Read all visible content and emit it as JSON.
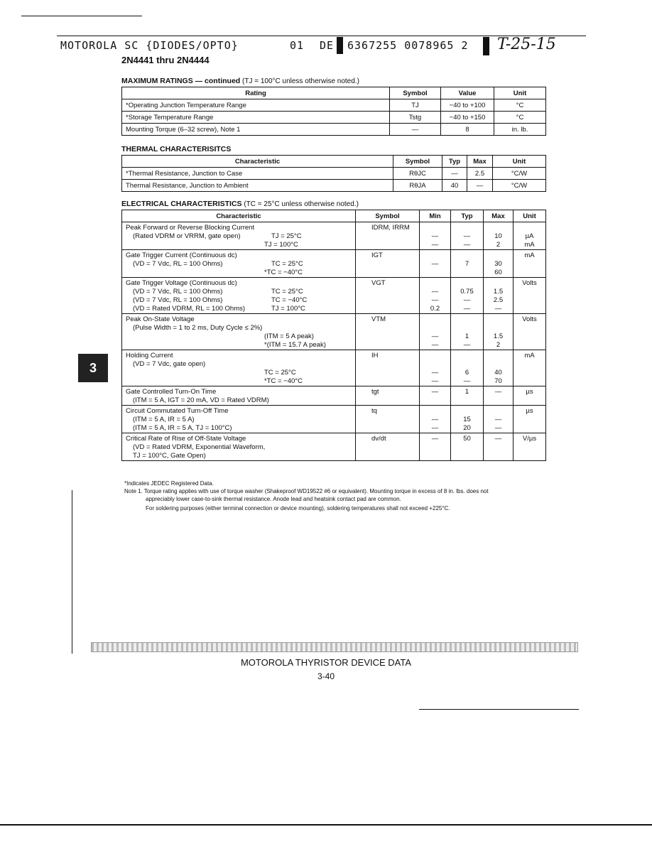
{
  "header": {
    "left": "MOTOROLA SC {DIODES/OPTO}",
    "code1": "01",
    "code2": "DE",
    "code3": "6367255 0078965 2",
    "handwritten": "T-25-15"
  },
  "title": "2N4441 thru 2N4444",
  "max_ratings": {
    "heading": "MAXIMUM RATINGS — continued",
    "heading_note": "(TJ = 100°C unless otherwise noted.)",
    "columns": [
      "Rating",
      "Symbol",
      "Value",
      "Unit"
    ],
    "rows": [
      [
        "*Operating Junction Temperature Range",
        "TJ",
        "−40 to +100",
        "°C"
      ],
      [
        "*Storage Temperature Range",
        "Tstg",
        "−40 to +150",
        "°C"
      ],
      [
        "Mounting Torque (6–32 screw), Note 1",
        "—",
        "8",
        "in. lb."
      ]
    ]
  },
  "thermal": {
    "heading": "THERMAL CHARACTERISITCS",
    "columns": [
      "Characteristic",
      "Symbol",
      "Typ",
      "Max",
      "Unit"
    ],
    "rows": [
      [
        "*Thermal Resistance, Junction to Case",
        "RθJC",
        "—",
        "2.5",
        "°C/W"
      ],
      [
        "Thermal Resistance, Junction to Ambient",
        "RθJA",
        "40",
        "—",
        "°C/W"
      ]
    ]
  },
  "electrical": {
    "heading": "ELECTRICAL CHARACTERISTICS",
    "heading_note": "(TC = 25°C unless otherwise noted.)",
    "columns": [
      "Characteristic",
      "Symbol",
      "Min",
      "Typ",
      "Max",
      "Unit"
    ],
    "rows": [
      {
        "symbol": "IDRM, IRRM",
        "lines": [
          {
            "c": "Peak Forward or Reverse Blocking Current"
          },
          {
            "c": "(Rated VDRM or VRRM, gate open)",
            "cond": "TJ = 25°C",
            "min": "—",
            "typ": "—",
            "max": "10",
            "unit": "µA"
          },
          {
            "c": "",
            "cond": "TJ = 100°C",
            "min": "—",
            "typ": "—",
            "max": "2",
            "unit": "mA"
          }
        ]
      },
      {
        "symbol": "IGT",
        "lines": [
          {
            "c": "Gate Trigger Current (Continuous dc)",
            "unit": "mA"
          },
          {
            "c": "(VD = 7 Vdc, RL = 100 Ohms)",
            "cond": "TC = 25°C",
            "min": "—",
            "typ": "7",
            "max": "30"
          },
          {
            "c": "",
            "cond": "*TC = −40°C",
            "max": "60"
          }
        ]
      },
      {
        "symbol": "VGT",
        "lines": [
          {
            "c": "Gate Trigger Voltage (Continuous dc)",
            "unit": "Volts"
          },
          {
            "c": "(VD = 7 Vdc, RL = 100 Ohms)",
            "cond": "TC = 25°C",
            "min": "—",
            "typ": "0.75",
            "max": "1.5"
          },
          {
            "c": "(VD = 7 Vdc, RL = 100 Ohms)",
            "cond": "TC = −40°C",
            "min": "—",
            "typ": "—",
            "max": "2.5"
          },
          {
            "c": "(VD = Rated VDRM, RL = 100 Ohms)",
            "cond": "TJ = 100°C",
            "min": "0.2",
            "typ": "—",
            "max": "—"
          }
        ]
      },
      {
        "symbol": "VTM",
        "lines": [
          {
            "c": "Peak On-State Voltage",
            "unit": "Volts"
          },
          {
            "c": "(Pulse Width = 1 to 2 ms, Duty Cycle ≤ 2%)"
          },
          {
            "c": "",
            "cond": "(ITM = 5 A peak)",
            "min": "—",
            "typ": "1",
            "max": "1.5"
          },
          {
            "c": "",
            "cond": "*(ITM = 15.7 A peak)",
            "min": "—",
            "typ": "—",
            "max": "2"
          }
        ]
      },
      {
        "symbol": "IH",
        "lines": [
          {
            "c": "Holding Current",
            "unit": "mA"
          },
          {
            "c": "(VD = 7 Vdc, gate open)"
          },
          {
            "c": "",
            "cond": "TC = 25°C",
            "min": "—",
            "typ": "6",
            "max": "40"
          },
          {
            "c": "",
            "cond": "*TC = −40°C",
            "min": "—",
            "typ": "—",
            "max": "70"
          }
        ]
      },
      {
        "symbol": "tgt",
        "lines": [
          {
            "c": "Gate Controlled Turn-On Time",
            "min": "—",
            "typ": "1",
            "max": "—",
            "unit": "µs"
          },
          {
            "c": "(ITM = 5 A, IGT = 20 mA, VD = Rated VDRM)"
          }
        ]
      },
      {
        "symbol": "tq",
        "lines": [
          {
            "c": "Circuit Commutated Turn-Off Time",
            "unit": "µs"
          },
          {
            "c": "(ITM = 5 A, IR = 5 A)",
            "min": "—",
            "typ": "15",
            "max": "—"
          },
          {
            "c": "(ITM = 5 A, IR = 5 A, TJ = 100°C)",
            "min": "—",
            "typ": "20",
            "max": "—"
          }
        ]
      },
      {
        "symbol": "dv/dt",
        "lines": [
          {
            "c": "Critical Rate of Rise of Off-State Voltage",
            "min": "—",
            "typ": "50",
            "max": "—",
            "unit": "V/µs"
          },
          {
            "c": "(VD = Rated VDRM, Exponential Waveform,"
          },
          {
            "c": "TJ = 100°C, Gate Open)"
          }
        ]
      }
    ]
  },
  "notes": {
    "jedec": "*Indicates JEDEC Registered Data.",
    "note1": "Note 1. Torque rating applies with use of torque washer (Shakeproof WD19522 #6 or equivalent). Mounting torque in excess of 8 in. lbs. does not",
    "note1b": "appreciably lower case-to-sink thermal resistance. Anode lead and heatsink contact pad are common.",
    "solder": "For soldering purposes (either terminal connection or device mounting), soldering temperatures shall not exceed +225°C."
  },
  "section_tab": "3",
  "footer": {
    "title": "MOTOROLA THYRISTOR DEVICE DATA",
    "page": "3-40"
  }
}
